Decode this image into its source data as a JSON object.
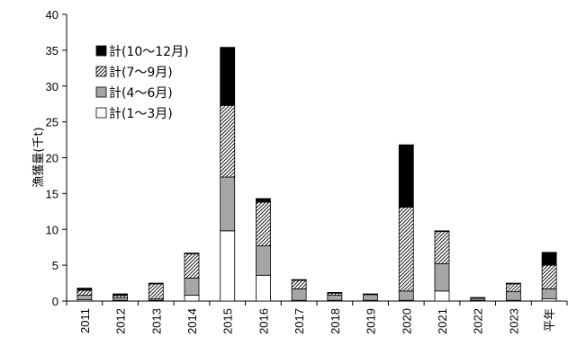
{
  "chart_data": {
    "type": "bar",
    "stacked": true,
    "title": "",
    "xlabel": "",
    "ylabel": "漁獲量(千t)",
    "ylim": [
      0,
      40
    ],
    "yticks": [
      0,
      5,
      10,
      15,
      20,
      25,
      30,
      35,
      40
    ],
    "grid": false,
    "legend_position": "top-left",
    "categories": [
      "2011",
      "2012",
      "2013",
      "2014",
      "2015",
      "2016",
      "2017",
      "2018",
      "2019",
      "2020",
      "2021",
      "2022",
      "2023",
      "平年"
    ],
    "series": [
      {
        "name": "計(1～3月)",
        "fill": "white",
        "values": [
          0.2,
          0.1,
          0.1,
          0.8,
          9.8,
          3.6,
          0.1,
          0.1,
          0.1,
          0.1,
          1.4,
          0.1,
          0.1,
          0.3
        ]
      },
      {
        "name": "計(4～6月)",
        "fill": "#a6a6a6",
        "values": [
          0.6,
          0.4,
          0.2,
          2.4,
          7.5,
          4.1,
          1.6,
          0.7,
          0.8,
          1.3,
          3.8,
          0.3,
          1.2,
          1.4
        ]
      },
      {
        "name": "計(7～9月)",
        "fill": "hatch",
        "values": [
          0.7,
          0.3,
          2.1,
          3.4,
          10.0,
          6.1,
          1.2,
          0.3,
          0.1,
          11.7,
          4.5,
          0.1,
          1.1,
          3.3
        ]
      },
      {
        "name": "計(10～12月)",
        "fill": "#000000",
        "values": [
          0.3,
          0.2,
          0.1,
          0.1,
          8.1,
          0.5,
          0.1,
          0.1,
          0.0,
          8.7,
          0.1,
          0.0,
          0.1,
          1.8
        ]
      }
    ],
    "legend_order": [
      "計(10～12月)",
      "計(7～9月)",
      "計(4～6月)",
      "計(1～3月)"
    ]
  }
}
